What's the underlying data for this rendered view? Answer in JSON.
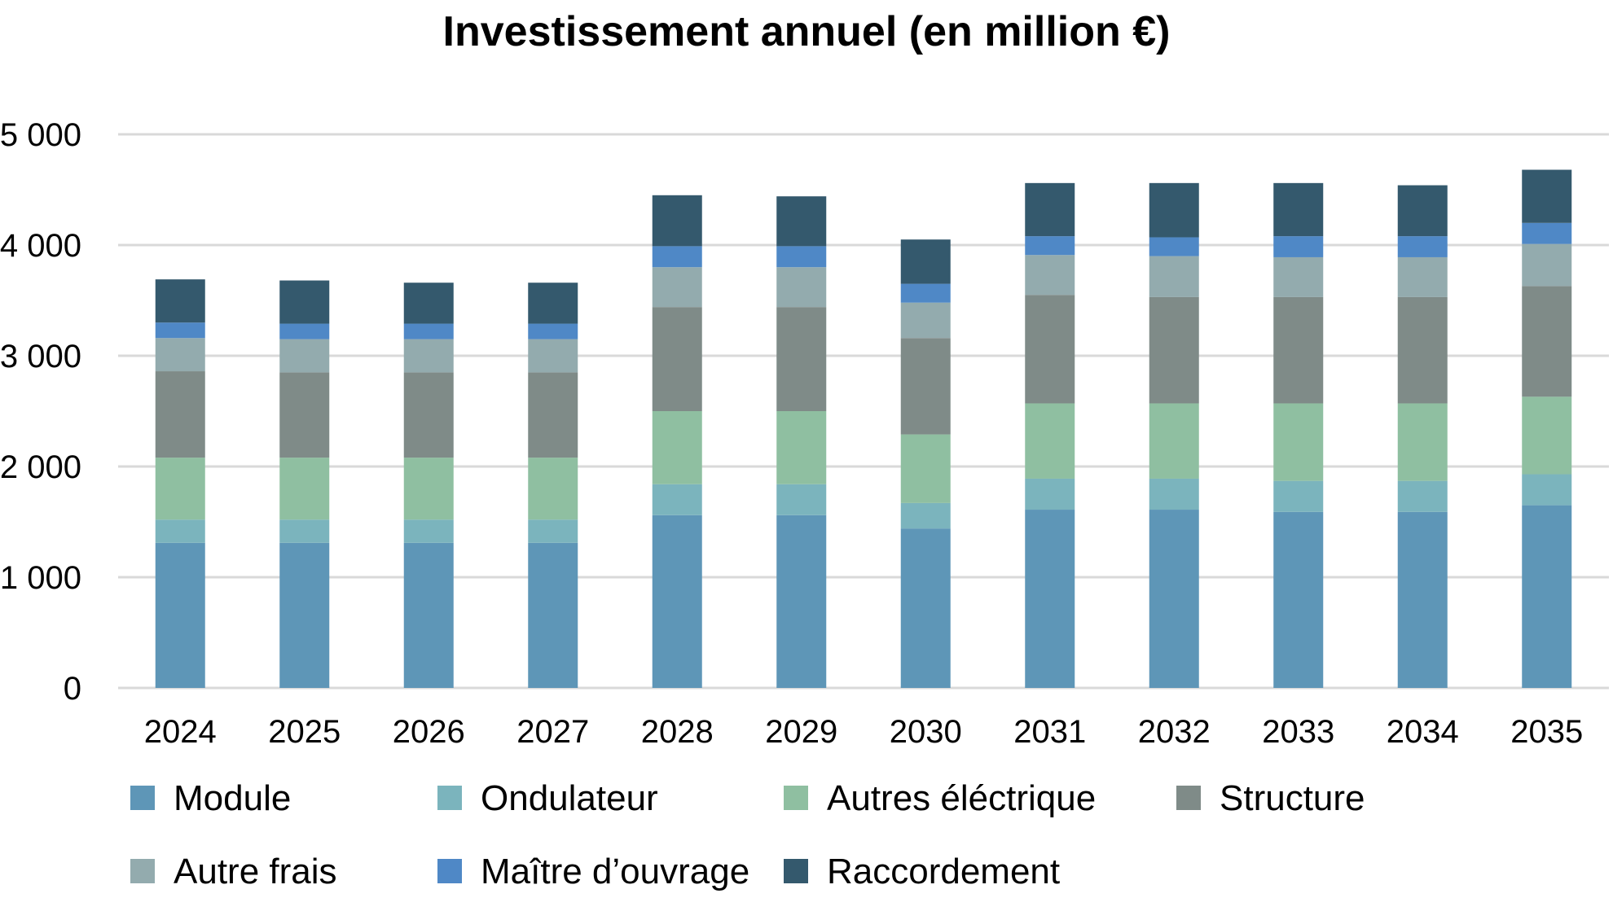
{
  "chart_data": {
    "type": "bar",
    "stacked": true,
    "title": "Investissement annuel (en million €)",
    "xlabel": "",
    "ylabel": "",
    "ylim": [
      0,
      5000
    ],
    "yticks": [
      0,
      1000,
      2000,
      3000,
      4000,
      5000
    ],
    "ytick_labels": [
      "0",
      "1 000",
      "2 000",
      "3 000",
      "4 000",
      "5 000"
    ],
    "grid": true,
    "legend_position": "bottom",
    "categories": [
      "2024",
      "2025",
      "2026",
      "2027",
      "2028",
      "2029",
      "2030",
      "2031",
      "2032",
      "2033",
      "2034",
      "2035"
    ],
    "series": [
      {
        "name": "Module",
        "color": "#5e96b7",
        "values": [
          1310,
          1310,
          1310,
          1310,
          1560,
          1560,
          1440,
          1610,
          1610,
          1590,
          1590,
          1650
        ]
      },
      {
        "name": "Ondulateur",
        "color": "#7bb4bd",
        "values": [
          210,
          210,
          210,
          210,
          280,
          280,
          230,
          280,
          280,
          280,
          280,
          280
        ]
      },
      {
        "name": "Autres éléctrique",
        "color": "#8fbfa1",
        "values": [
          560,
          560,
          560,
          560,
          660,
          660,
          620,
          680,
          680,
          700,
          700,
          700
        ]
      },
      {
        "name": "Structure",
        "color": "#7f8b88",
        "values": [
          780,
          770,
          770,
          770,
          940,
          940,
          870,
          980,
          960,
          960,
          960,
          1000
        ]
      },
      {
        "name": "Autre frais",
        "color": "#93abae",
        "values": [
          300,
          300,
          300,
          300,
          360,
          360,
          320,
          360,
          370,
          360,
          360,
          380
        ]
      },
      {
        "name": "Maître d’ouvrage",
        "color": "#4f88c6",
        "values": [
          140,
          140,
          140,
          140,
          190,
          190,
          170,
          170,
          170,
          190,
          190,
          190
        ]
      },
      {
        "name": "Raccordement",
        "color": "#34596d",
        "values": [
          390,
          390,
          370,
          370,
          460,
          450,
          400,
          480,
          490,
          480,
          460,
          480
        ]
      }
    ]
  }
}
